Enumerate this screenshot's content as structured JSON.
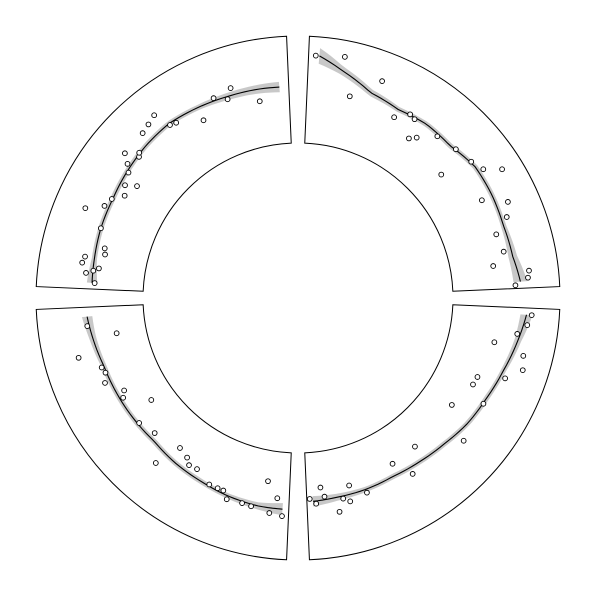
{
  "chart_data": {
    "type": "scatter",
    "title": "",
    "xlabel": "",
    "ylabel": "",
    "grid": false,
    "legend": "none",
    "colors": {
      "frame": "#000000",
      "points": "#000000",
      "smooth_line": "#000000",
      "confidence_band": "#c8c8c8",
      "background": "#ffffff"
    },
    "layout": "circular",
    "panels": [
      {
        "id": "top-left",
        "theta_range": [
          -180,
          -90
        ],
        "r_range": [
          0,
          1
        ],
        "points": [
          [
            0.02,
            0.47
          ],
          [
            0.05,
            0.58
          ],
          [
            0.06,
            0.5
          ],
          [
            0.07,
            0.44
          ],
          [
            0.08,
            0.64
          ],
          [
            0.1,
            0.62
          ],
          [
            0.12,
            0.4
          ],
          [
            0.14,
            0.42
          ],
          [
            0.2,
            0.53
          ],
          [
            0.24,
            0.78
          ],
          [
            0.27,
            0.59
          ],
          [
            0.3,
            0.55
          ],
          [
            0.33,
            0.44
          ],
          [
            0.36,
            0.5
          ],
          [
            0.38,
            0.38
          ],
          [
            0.4,
            0.55
          ],
          [
            0.42,
            0.62
          ],
          [
            0.44,
            0.72
          ],
          [
            0.46,
            0.57
          ],
          [
            0.47,
            0.6
          ],
          [
            0.52,
            0.73
          ],
          [
            0.55,
            0.76
          ],
          [
            0.58,
            0.8
          ],
          [
            0.6,
            0.6
          ],
          [
            0.62,
            0.58
          ],
          [
            0.7,
            0.44
          ],
          [
            0.76,
            0.62
          ],
          [
            0.8,
            0.55
          ],
          [
            0.82,
            0.66
          ],
          [
            0.9,
            0.43
          ]
        ],
        "smooth": [
          [
            0.02,
            0.5
          ],
          [
            0.1,
            0.51
          ],
          [
            0.2,
            0.53
          ],
          [
            0.3,
            0.54
          ],
          [
            0.4,
            0.57
          ],
          [
            0.5,
            0.6
          ],
          [
            0.6,
            0.62
          ],
          [
            0.7,
            0.6
          ],
          [
            0.8,
            0.58
          ],
          [
            0.9,
            0.57
          ],
          [
            0.97,
            0.56
          ]
        ],
        "band": [
          0.06,
          0.03,
          0.03,
          0.03,
          0.03,
          0.03,
          0.03,
          0.03,
          0.04,
          0.05,
          0.06
        ]
      },
      {
        "id": "top-right",
        "theta_range": [
          -90,
          0
        ],
        "r_range": [
          0,
          1
        ],
        "points": [
          [
            0.02,
            0.92
          ],
          [
            0.1,
            0.95
          ],
          [
            0.14,
            0.52
          ],
          [
            0.22,
            0.8
          ],
          [
            0.3,
            0.48
          ],
          [
            0.34,
            0.6
          ],
          [
            0.36,
            0.58
          ],
          [
            0.38,
            0.36
          ],
          [
            0.4,
            0.42
          ],
          [
            0.45,
            0.58
          ],
          [
            0.52,
            0.62
          ],
          [
            0.55,
            0.3
          ],
          [
            0.58,
            0.66
          ],
          [
            0.62,
            0.72
          ],
          [
            0.65,
            0.9
          ],
          [
            0.7,
            0.52
          ],
          [
            0.74,
            0.78
          ],
          [
            0.78,
            0.7
          ],
          [
            0.82,
            0.52
          ],
          [
            0.88,
            0.55
          ],
          [
            0.92,
            0.4
          ],
          [
            0.95,
            0.8
          ],
          [
            0.97,
            0.78
          ],
          [
            0.99,
            0.63
          ]
        ],
        "smooth": [
          [
            0.03,
            0.92
          ],
          [
            0.1,
            0.79
          ],
          [
            0.2,
            0.63
          ],
          [
            0.3,
            0.58
          ],
          [
            0.4,
            0.61
          ],
          [
            0.5,
            0.6
          ],
          [
            0.6,
            0.66
          ],
          [
            0.7,
            0.65
          ],
          [
            0.8,
            0.63
          ],
          [
            0.9,
            0.64
          ],
          [
            0.98,
            0.69
          ]
        ],
        "band": [
          0.09,
          0.05,
          0.04,
          0.03,
          0.03,
          0.03,
          0.03,
          0.03,
          0.03,
          0.05,
          0.08
        ]
      },
      {
        "id": "bottom-left",
        "theta_range": [
          90,
          180
        ],
        "r_range": [
          0,
          1
        ],
        "points": [
          [
            0.02,
            0.64
          ],
          [
            0.04,
            0.44
          ],
          [
            0.06,
            0.62
          ],
          [
            0.08,
            0.26
          ],
          [
            0.12,
            0.58
          ],
          [
            0.15,
            0.57
          ],
          [
            0.2,
            0.58
          ],
          [
            0.22,
            0.5
          ],
          [
            0.24,
            0.5
          ],
          [
            0.27,
            0.5
          ],
          [
            0.33,
            0.41
          ],
          [
            0.36,
            0.42
          ],
          [
            0.38,
            0.36
          ],
          [
            0.42,
            0.32
          ],
          [
            0.45,
            0.63
          ],
          [
            0.52,
            0.39
          ],
          [
            0.58,
            0.45
          ],
          [
            0.62,
            0.18
          ],
          [
            0.68,
            0.44
          ],
          [
            0.7,
            0.39
          ],
          [
            0.75,
            0.55
          ],
          [
            0.78,
            0.5
          ],
          [
            0.8,
            0.52
          ],
          [
            0.85,
            0.74
          ],
          [
            0.9,
            0.25
          ],
          [
            0.94,
            0.57
          ]
        ],
        "smooth": [
          [
            0.02,
            0.56
          ],
          [
            0.1,
            0.56
          ],
          [
            0.2,
            0.54
          ],
          [
            0.3,
            0.51
          ],
          [
            0.4,
            0.49
          ],
          [
            0.5,
            0.46
          ],
          [
            0.6,
            0.47
          ],
          [
            0.7,
            0.48
          ],
          [
            0.8,
            0.49
          ],
          [
            0.9,
            0.53
          ],
          [
            0.97,
            0.56
          ]
        ],
        "band": [
          0.07,
          0.04,
          0.03,
          0.03,
          0.03,
          0.03,
          0.03,
          0.03,
          0.03,
          0.04,
          0.06
        ]
      },
      {
        "id": "bottom-right",
        "theta_range": [
          0,
          90
        ],
        "r_range": [
          0,
          1
        ],
        "points": [
          [
            0.02,
            0.82
          ],
          [
            0.05,
            0.78
          ],
          [
            0.08,
            0.68
          ],
          [
            0.12,
            0.44
          ],
          [
            0.14,
            0.8
          ],
          [
            0.18,
            0.84
          ],
          [
            0.22,
            0.68
          ],
          [
            0.25,
            0.38
          ],
          [
            0.28,
            0.37
          ],
          [
            0.32,
            0.58
          ],
          [
            0.38,
            0.28
          ],
          [
            0.45,
            0.64
          ],
          [
            0.58,
            0.3
          ],
          [
            0.64,
            0.54
          ],
          [
            0.68,
            0.32
          ],
          [
            0.8,
            0.5
          ],
          [
            0.85,
            0.36
          ],
          [
            0.86,
            0.54
          ],
          [
            0.88,
            0.49
          ],
          [
            0.9,
            0.63
          ],
          [
            0.94,
            0.43
          ],
          [
            0.95,
            0.32
          ],
          [
            0.97,
            0.5
          ],
          [
            0.99,
            0.44
          ]
        ],
        "smooth": [
          [
            0.02,
            0.76
          ],
          [
            0.1,
            0.7
          ],
          [
            0.2,
            0.63
          ],
          [
            0.3,
            0.58
          ],
          [
            0.4,
            0.55
          ],
          [
            0.5,
            0.5
          ],
          [
            0.6,
            0.47
          ],
          [
            0.7,
            0.45
          ],
          [
            0.8,
            0.46
          ],
          [
            0.9,
            0.46
          ],
          [
            0.98,
            0.47
          ]
        ],
        "band": [
          0.07,
          0.04,
          0.03,
          0.03,
          0.03,
          0.03,
          0.03,
          0.03,
          0.03,
          0.04,
          0.06
        ]
      }
    ]
  }
}
